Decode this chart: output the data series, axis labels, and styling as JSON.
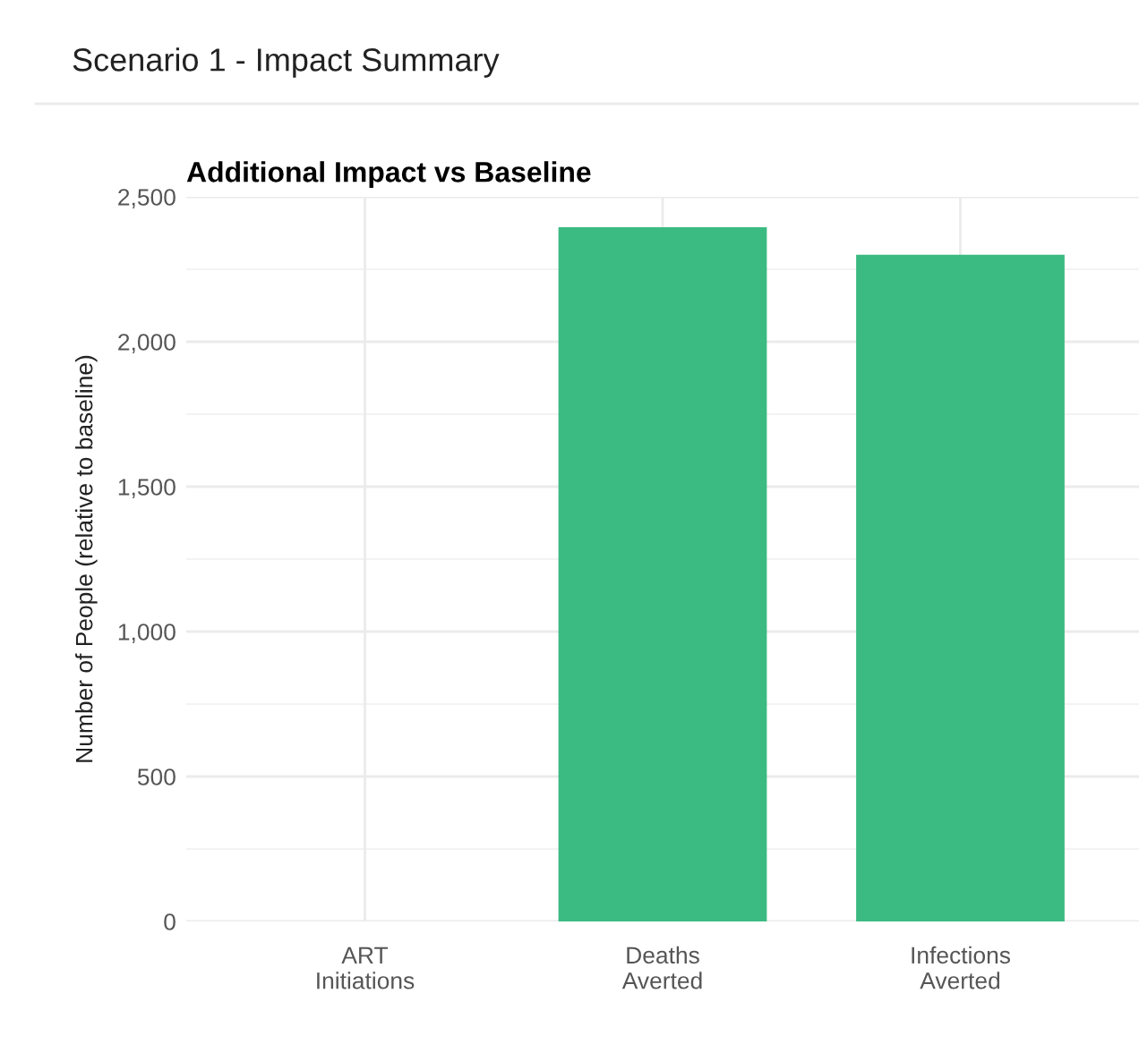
{
  "chart_data": {
    "type": "bar",
    "title": "Scenario 1 - Impact Summary",
    "subtitle": "Additional Impact vs Baseline",
    "ylabel": "Number of People (relative to baseline)",
    "categories": [
      "ART\nInitiations",
      "Deaths\nAverted",
      "Infections\nAverted"
    ],
    "values": [
      0,
      2395,
      2300
    ],
    "color": "#3bba82",
    "ylim": [
      0,
      2500
    ],
    "yticks": [
      {
        "value": 0,
        "label": "0"
      },
      {
        "value": 500,
        "label": "500"
      },
      {
        "value": 1000,
        "label": "1,000"
      },
      {
        "value": 1500,
        "label": "1,500"
      },
      {
        "value": 2000,
        "label": "2,000"
      },
      {
        "value": 2500,
        "label": "2,500"
      }
    ],
    "grid": true,
    "legend": false
  }
}
